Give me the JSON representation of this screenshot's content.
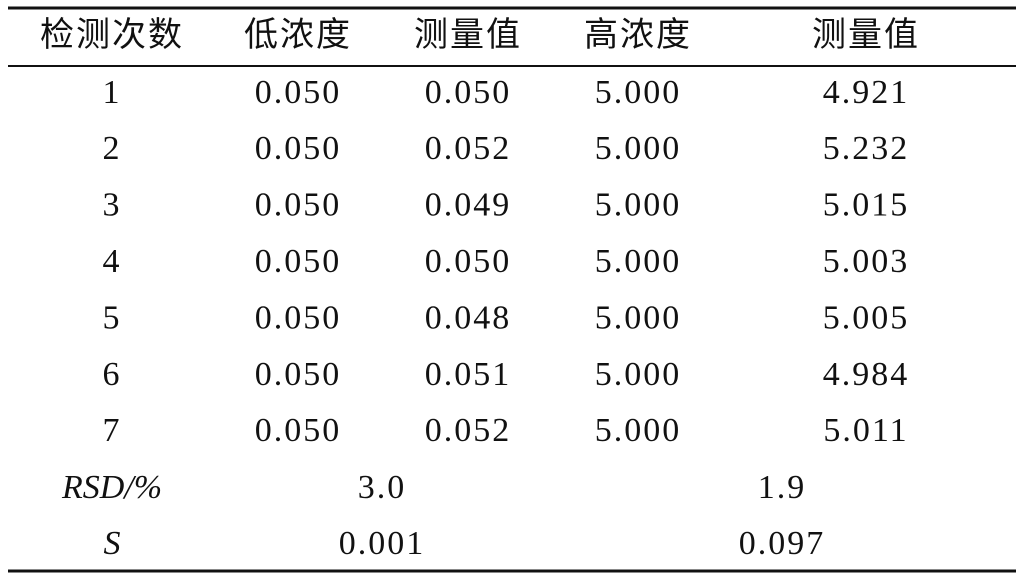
{
  "table": {
    "header": [
      "检测次数",
      "低浓度",
      "测量值",
      "高浓度",
      "测量值"
    ],
    "rows": [
      [
        "1",
        "0.050",
        "0.050",
        "5.000",
        "4.921"
      ],
      [
        "2",
        "0.050",
        "0.052",
        "5.000",
        "5.232"
      ],
      [
        "3",
        "0.050",
        "0.049",
        "5.000",
        "5.015"
      ],
      [
        "4",
        "0.050",
        "0.050",
        "5.000",
        "5.003"
      ],
      [
        "5",
        "0.050",
        "0.048",
        "5.000",
        "5.005"
      ],
      [
        "6",
        "0.050",
        "0.051",
        "5.000",
        "4.984"
      ],
      [
        "7",
        "0.050",
        "0.052",
        "5.000",
        "5.011"
      ]
    ],
    "summary": [
      {
        "label": "RSD/%",
        "low": "3.0",
        "high": "1.9"
      },
      {
        "label": "S",
        "low": "0.001",
        "high": "0.097"
      }
    ]
  }
}
